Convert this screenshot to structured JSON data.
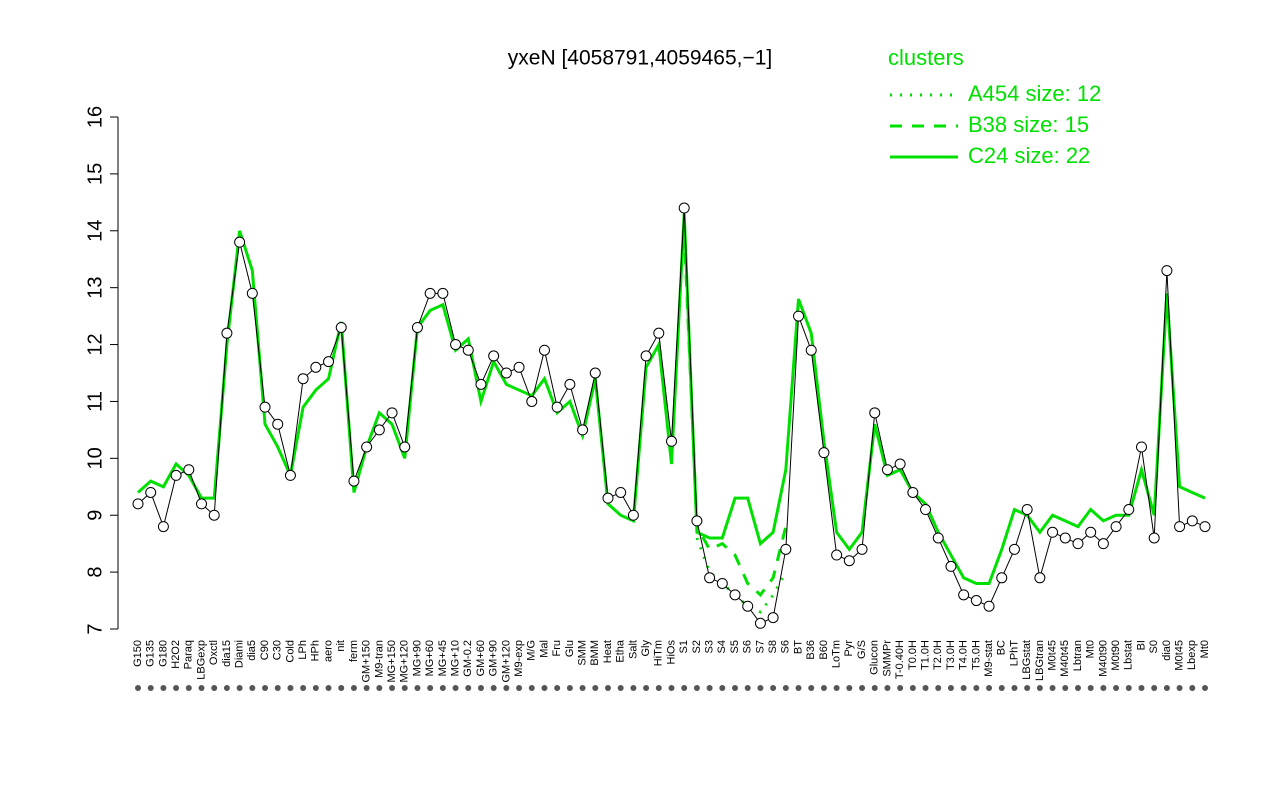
{
  "chart_data": {
    "type": "line",
    "title": "yxeN [4058791,4059465,−1]",
    "legend_title": "clusters",
    "categories": [
      "G150",
      "G135",
      "G180",
      "H2O2",
      "Paraq",
      "LBGexp",
      "Oxctl",
      "dia15",
      "Diami",
      "dia5",
      "C90",
      "C30",
      "Cold",
      "LPh",
      "HPh",
      "aero",
      "nit",
      "ferm",
      "GM+150",
      "M9-tran",
      "MG+150",
      "MG+120",
      "MG+90",
      "MG+60",
      "MG+45",
      "MG+10",
      "GM-0.2",
      "GM+60",
      "GM+90",
      "GM+120",
      "M9-exp",
      "M/G",
      "Mal",
      "Fru",
      "Glu",
      "SMM",
      "BMM",
      "Heat",
      "Etha",
      "Salt",
      "Gly",
      "HiTm",
      "HiOs",
      "S1",
      "S2",
      "S3",
      "S4",
      "S5",
      "S6",
      "S7",
      "S8",
      "S6",
      "BT",
      "B36",
      "B60",
      "LoTm",
      "Pyr",
      "G/S",
      "Glucon",
      "SMMPr",
      "T-0.40H",
      "T0.0H",
      "T1.0H",
      "T2.0H",
      "T3.0H",
      "T4.0H",
      "T5.0H",
      "M9-stat",
      "BC",
      "LPhT",
      "LBGstat",
      "LBGtran",
      "M0t45",
      "M40t45",
      "Lbtran",
      "Mt0",
      "M40t90",
      "M0t90",
      "Lbstat",
      "BI",
      "S0",
      "dia0",
      "M0t45",
      "Lbexp",
      "Mt0"
    ],
    "values": [
      9.2,
      9.4,
      8.8,
      9.7,
      9.8,
      9.2,
      9.0,
      12.2,
      13.8,
      12.9,
      10.9,
      10.6,
      9.7,
      11.4,
      11.6,
      11.7,
      12.3,
      9.6,
      10.2,
      10.5,
      10.8,
      10.2,
      12.3,
      12.9,
      12.9,
      12.0,
      11.9,
      11.3,
      11.8,
      11.5,
      11.6,
      11.0,
      11.9,
      10.9,
      11.3,
      10.5,
      11.5,
      9.3,
      9.4,
      9.0,
      11.8,
      12.2,
      10.3,
      14.4,
      8.9,
      7.9,
      7.8,
      7.6,
      7.4,
      7.1,
      7.2,
      8.4,
      12.5,
      11.9,
      10.1,
      8.3,
      8.2,
      8.4,
      10.8,
      9.8,
      9.9,
      9.4,
      9.1,
      8.6,
      8.1,
      7.6,
      7.5,
      7.4,
      7.9,
      8.4,
      9.1,
      7.9,
      8.7,
      8.6,
      8.5,
      8.7,
      8.5,
      8.8,
      9.1,
      10.2,
      8.6,
      13.3,
      8.8,
      8.9,
      8.8
    ],
    "line_color": "#000000",
    "marker_fill": "#ffffff",
    "series": [
      {
        "name": "A454 size: 12",
        "color": "#00e000",
        "style": "dotted",
        "values": [
          null,
          null,
          null,
          null,
          null,
          null,
          null,
          null,
          null,
          null,
          null,
          null,
          null,
          null,
          null,
          null,
          null,
          null,
          null,
          null,
          null,
          null,
          null,
          null,
          null,
          null,
          null,
          null,
          null,
          null,
          null,
          null,
          null,
          null,
          null,
          null,
          null,
          null,
          null,
          null,
          null,
          null,
          null,
          null,
          8.6,
          8.0,
          7.8,
          7.6,
          7.4,
          7.3,
          7.6,
          8.0,
          null,
          null,
          null,
          null,
          null,
          null,
          null,
          null,
          null,
          null,
          null,
          null,
          null,
          null,
          null,
          null,
          null,
          null,
          null,
          null,
          null,
          null,
          null,
          null,
          null,
          null,
          null,
          null,
          null,
          null,
          null,
          null,
          null
        ]
      },
      {
        "name": "B38 size: 15",
        "color": "#00e000",
        "style": "dashed",
        "values": [
          null,
          null,
          null,
          null,
          null,
          null,
          null,
          null,
          null,
          null,
          null,
          null,
          null,
          null,
          null,
          null,
          null,
          null,
          null,
          null,
          null,
          null,
          null,
          null,
          null,
          null,
          null,
          null,
          null,
          null,
          null,
          null,
          null,
          null,
          null,
          null,
          null,
          null,
          null,
          null,
          null,
          null,
          null,
          14.0,
          8.8,
          8.4,
          8.5,
          8.3,
          7.8,
          7.6,
          7.9,
          8.8,
          null,
          null,
          null,
          null,
          null,
          null,
          null,
          null,
          null,
          null,
          null,
          null,
          null,
          null,
          null,
          null,
          null,
          null,
          null,
          null,
          null,
          null,
          null,
          null,
          null,
          null,
          null,
          null,
          null,
          null,
          null,
          null,
          null
        ]
      },
      {
        "name": "C24 size: 22",
        "color": "#00e000",
        "style": "solid",
        "values": [
          9.4,
          9.6,
          9.5,
          9.9,
          9.7,
          9.3,
          9.3,
          12.0,
          14.0,
          13.3,
          10.6,
          10.2,
          9.7,
          10.9,
          11.2,
          11.4,
          12.4,
          9.4,
          10.2,
          10.8,
          10.6,
          10.0,
          12.3,
          12.6,
          12.7,
          11.9,
          12.1,
          11.0,
          11.7,
          11.3,
          11.2,
          11.1,
          11.4,
          10.8,
          11.0,
          10.4,
          11.4,
          9.2,
          9.0,
          8.9,
          11.6,
          12.0,
          9.9,
          14.3,
          8.7,
          8.6,
          8.6,
          9.3,
          9.3,
          8.5,
          8.7,
          9.8,
          12.8,
          12.2,
          10.3,
          8.7,
          8.4,
          8.7,
          10.6,
          9.7,
          9.8,
          9.4,
          9.2,
          8.7,
          8.3,
          7.9,
          7.8,
          7.8,
          8.4,
          9.1,
          9.0,
          8.7,
          9.0,
          8.9,
          8.8,
          9.1,
          8.9,
          9.0,
          9.0,
          9.8,
          9.0,
          12.9,
          9.5,
          9.4,
          9.3
        ]
      }
    ],
    "ylim": [
      7,
      16
    ],
    "yticks": [
      7,
      8,
      9,
      10,
      11,
      12,
      13,
      14,
      15,
      16
    ]
  }
}
